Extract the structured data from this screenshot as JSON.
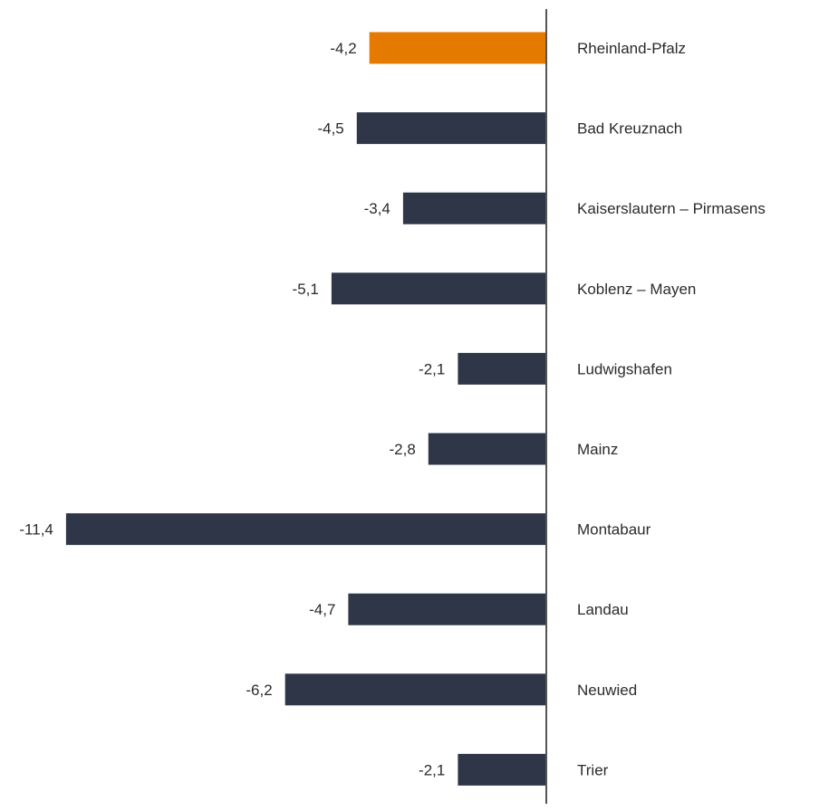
{
  "chart_data": {
    "type": "bar",
    "orientation": "horizontal",
    "categories": [
      "Rheinland-Pfalz",
      "Bad Kreuznach",
      "Kaiserslautern – Pirmasens",
      "Koblenz – Mayen",
      "Ludwigshafen",
      "Mainz",
      "Montabaur",
      "Landau",
      "Neuwied",
      "Trier"
    ],
    "values": [
      -4.2,
      -4.5,
      -3.4,
      -5.1,
      -2.1,
      -2.8,
      -11.4,
      -4.7,
      -6.2,
      -2.1
    ],
    "value_labels": [
      "-4,2",
      "-4,5",
      "-3,4",
      "-5,1",
      "-2,1",
      "-2,8",
      "-11,4",
      "-4,7",
      "-6,2",
      "-2,1"
    ],
    "highlight_index": 0,
    "colors": {
      "highlight": "#E57A00",
      "default": "#2E3648",
      "axis": "#555555"
    },
    "grid": false,
    "legend": "none"
  }
}
